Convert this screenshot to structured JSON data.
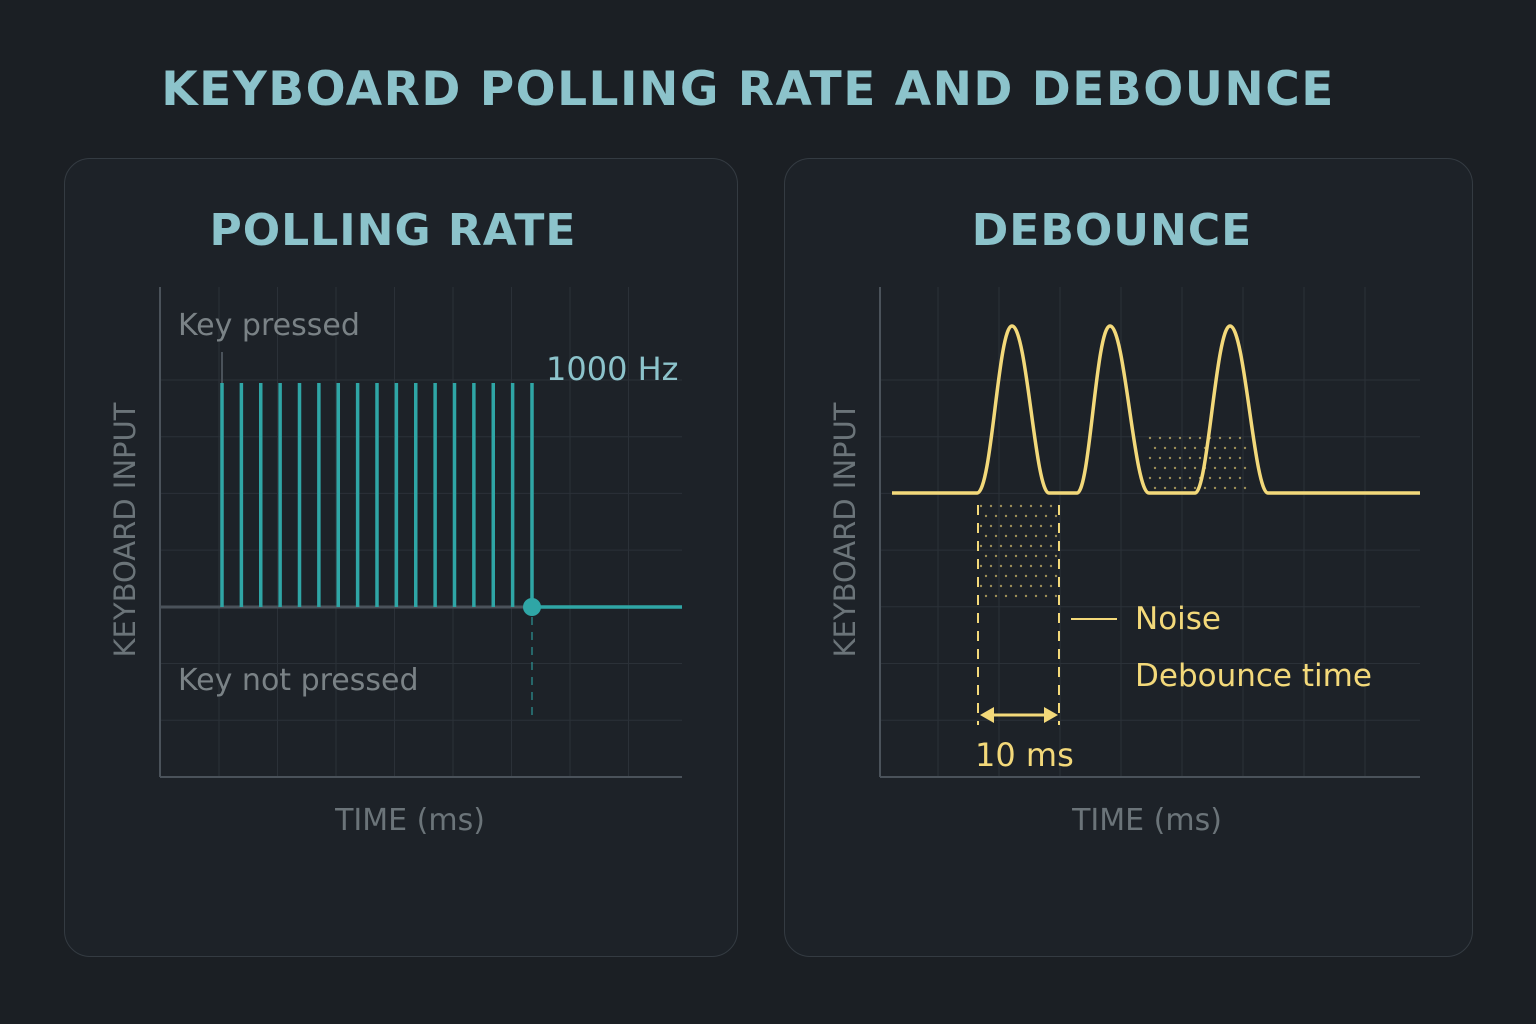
{
  "title": "KEYBOARD POLLING RATE AND DEBOUNCE",
  "polling": {
    "heading": "POLLING RATE",
    "y_label": "KEYBOARD INPUT",
    "x_label": "TIME (ms)",
    "label_top": "Key pressed",
    "label_bottom": "Key not pressed",
    "rate_label": "1000 Hz",
    "sample_count": 17,
    "color": "#2fa6a6"
  },
  "debounce": {
    "heading": "DEBOUNCE",
    "y_label": "KEYBOARD INPUT",
    "x_label": "TIME (ms)",
    "noise_label": "Noise",
    "debounce_label": "Debounce time",
    "interval_label": "10 ms",
    "bounce_count": 3,
    "color": "#f3d97a"
  },
  "colors": {
    "background": "#1b1f24",
    "title": "#8cc3cb",
    "axis_text": "#6b7479",
    "grid": "#2b3138"
  }
}
